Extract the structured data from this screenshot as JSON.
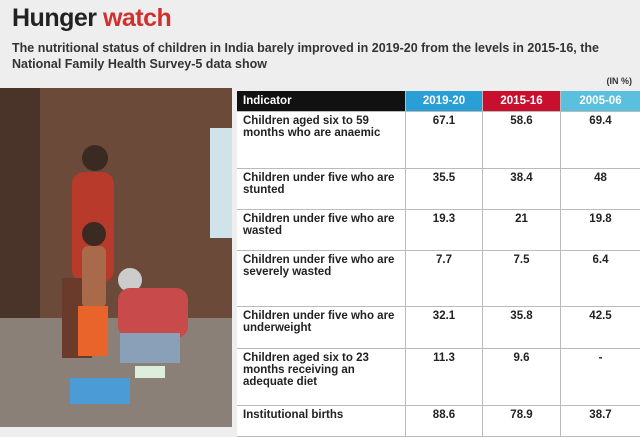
{
  "header": {
    "title_part1": "Hunger",
    "title_part2": "watch",
    "subtitle": "The nutritional status of children in India barely improved in 2019-20 from the levels in 2015-16, the National Family Health Survey-5 data show"
  },
  "table": {
    "unit": "(IN %)",
    "columns": [
      "Indicator",
      "2019-20",
      "2015-16",
      "2005-06"
    ],
    "rows": [
      [
        "Children aged six to 59 months who are anaemic",
        67.1,
        58.6,
        69.4
      ],
      [
        "Children under five who are stunted",
        35.5,
        38.4,
        48
      ],
      [
        "Children under five who are wasted",
        19.3,
        21,
        19.8
      ],
      [
        "Children under five who are severely wasted",
        7.7,
        7.5,
        6.4
      ],
      [
        "Children under five who are underweight",
        32.1,
        35.8,
        42.5
      ],
      [
        "Children aged six to 23 months receiving an adequate diet",
        11.3,
        9.6,
        "-"
      ],
      [
        "Institutional births",
        88.6,
        78.9,
        38.7
      ]
    ]
  }
}
